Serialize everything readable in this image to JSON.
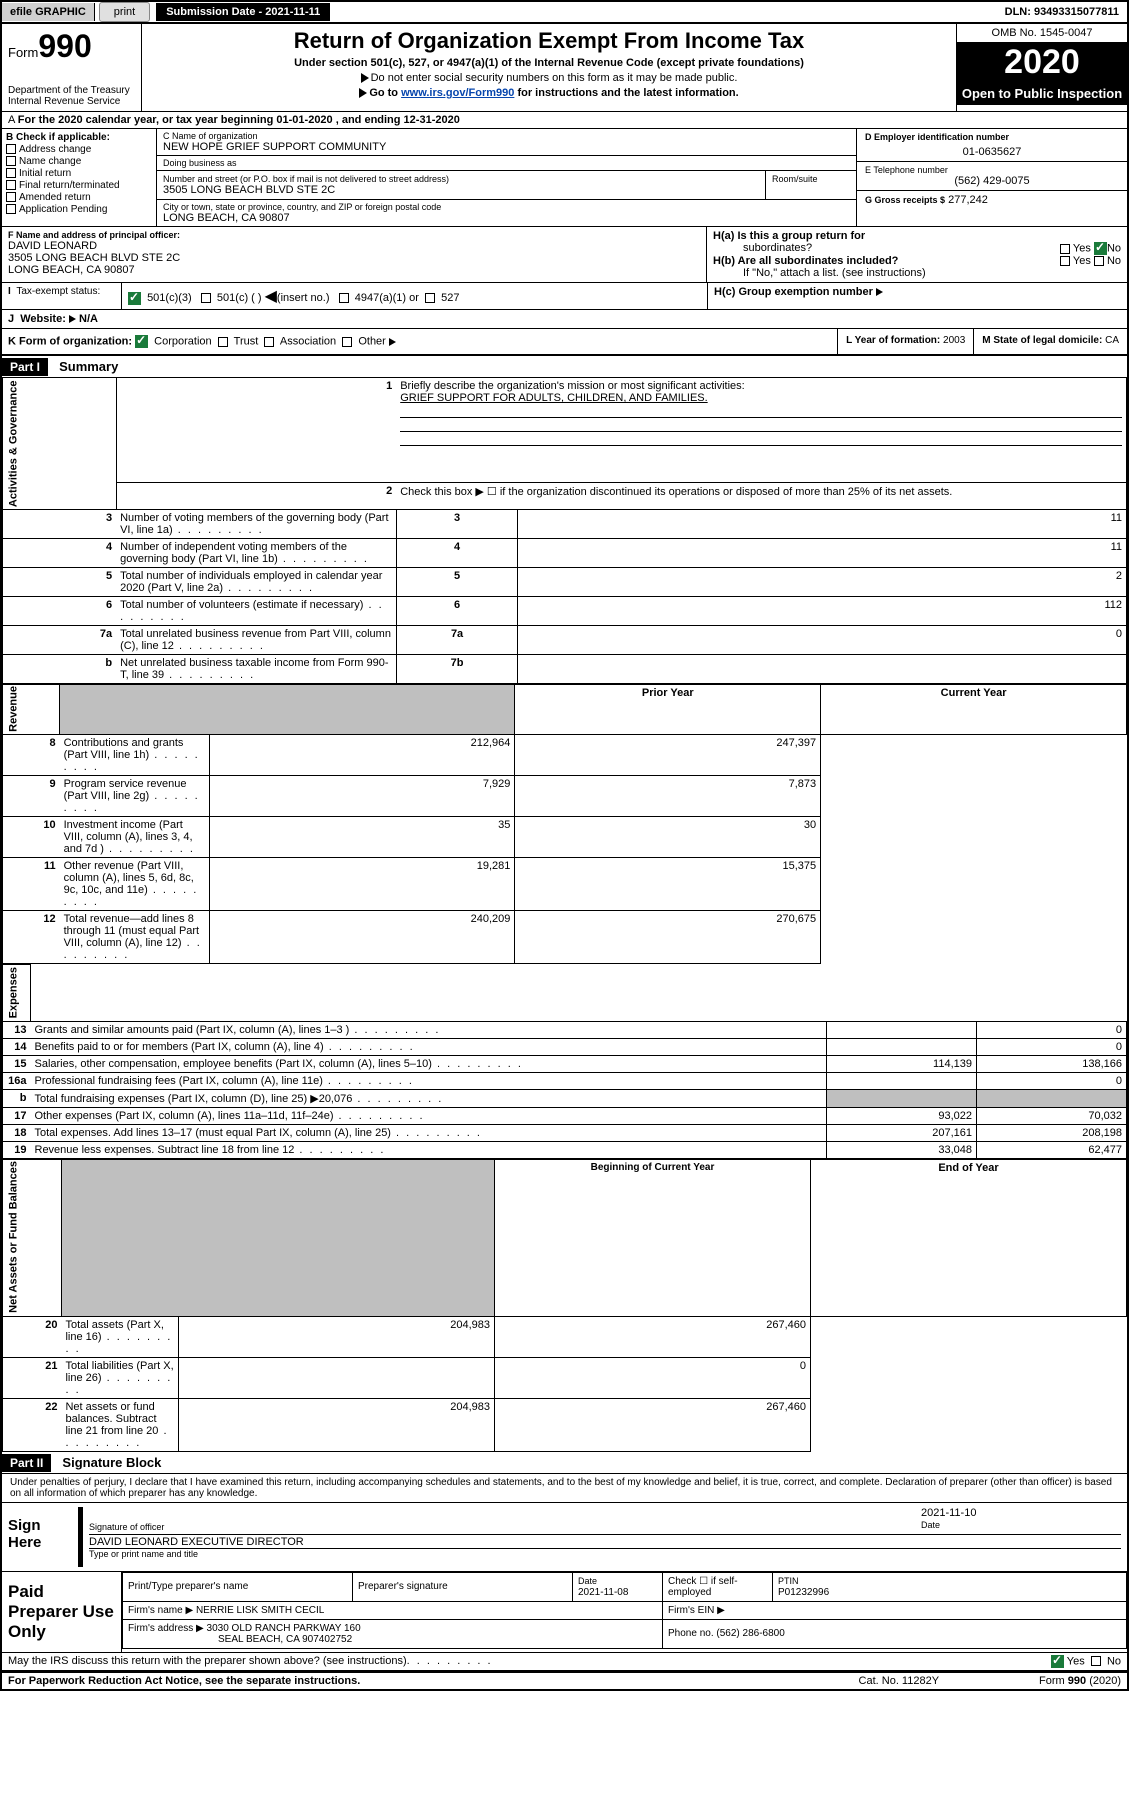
{
  "top": {
    "efile": "efile GRAPHIC",
    "print": "print",
    "submission_label": "Submission Date - 2021-11-11",
    "dln": "DLN: 93493315077811"
  },
  "header": {
    "form_word": "Form",
    "form_num": "990",
    "title": "Return of Organization Exempt From Income Tax",
    "subtitle": "Under section 501(c), 527, or 4947(a)(1) of the Internal Revenue Code (except private foundations)",
    "note1": "Do not enter social security numbers on this form as it may be made public.",
    "note2_pre": "Go to ",
    "note2_link": "www.irs.gov/Form990",
    "note2_post": " for instructions and the latest information.",
    "dept": "Department of the Treasury\nInternal Revenue Service",
    "omb": "OMB No. 1545-0047",
    "year": "2020",
    "open": "Open to Public Inspection"
  },
  "period": "For the 2020 calendar year, or tax year beginning 01-01-2020   , and ending 12-31-2020",
  "boxB": {
    "hdr": "B Check if applicable:",
    "items": [
      "Address change",
      "Name change",
      "Initial return",
      "Final return/terminated",
      "Amended return",
      "Application Pending"
    ]
  },
  "boxC": {
    "name_lbl": "C Name of organization",
    "name": "NEW HOPE GRIEF SUPPORT COMMUNITY",
    "dba_lbl": "Doing business as",
    "dba": "",
    "street_lbl": "Number and street (or P.O. box if mail is not delivered to street address)",
    "room_lbl": "Room/suite",
    "street": "3505 LONG BEACH BLVD STE 2C",
    "city_lbl": "City or town, state or province, country, and ZIP or foreign postal code",
    "city": "LONG BEACH, CA  90807"
  },
  "boxD": {
    "lbl": "D Employer identification number",
    "val": "01-0635627"
  },
  "boxE": {
    "lbl": "E Telephone number",
    "val": "(562) 429-0075"
  },
  "boxG": {
    "lbl": "G Gross receipts $",
    "val": "277,242"
  },
  "boxF": {
    "lbl": "F  Name and address of principal officer:",
    "name": "DAVID LEONARD",
    "addr1": "3505 LONG BEACH BLVD STE 2C",
    "addr2": "LONG BEACH, CA  90807"
  },
  "boxH": {
    "a_lbl": "H(a)  Is this a group return for",
    "a_sub": "subordinates?",
    "b_lbl": "H(b)  Are all subordinates included?",
    "b_note": "If \"No,\" attach a list. (see instructions)",
    "c_lbl": "H(c)  Group exemption number",
    "yes": "Yes",
    "no": "No"
  },
  "boxI": {
    "lbl": "Tax-exempt status:",
    "opts": [
      "501(c)(3)",
      "501(c) (  )",
      "(insert no.)",
      "4947(a)(1) or",
      "527"
    ]
  },
  "boxJ": {
    "lbl": "Website:",
    "val": "N/A"
  },
  "boxK": {
    "lbl": "K Form of organization:",
    "opts": [
      "Corporation",
      "Trust",
      "Association",
      "Other"
    ]
  },
  "boxL": {
    "lbl": "L Year of formation:",
    "val": "2003"
  },
  "boxM": {
    "lbl": "M State of legal domicile:",
    "val": "CA"
  },
  "part1": {
    "hdr": "Part I",
    "title": "Summary",
    "side_ag": "Activities & Governance",
    "side_rev": "Revenue",
    "side_exp": "Expenses",
    "side_na": "Net Assets or Fund Balances",
    "q1": "Briefly describe the organization's mission or most significant activities:",
    "q1_ans": "GRIEF SUPPORT FOR ADULTS, CHILDREN, AND FAMILIES.",
    "q2": "Check this box ▶ ☐  if the organization discontinued its operations or disposed of more than 25% of its net assets.",
    "rows_ag": [
      {
        "n": "3",
        "d": "Number of voting members of the governing body (Part VI, line 1a)",
        "k": "3",
        "v": "11"
      },
      {
        "n": "4",
        "d": "Number of independent voting members of the governing body (Part VI, line 1b)",
        "k": "4",
        "v": "11"
      },
      {
        "n": "5",
        "d": "Total number of individuals employed in calendar year 2020 (Part V, line 2a)",
        "k": "5",
        "v": "2"
      },
      {
        "n": "6",
        "d": "Total number of volunteers (estimate if necessary)",
        "k": "6",
        "v": "112"
      },
      {
        "n": "7a",
        "d": "Total unrelated business revenue from Part VIII, column (C), line 12",
        "k": "7a",
        "v": "0"
      },
      {
        "n": "b",
        "d": "Net unrelated business taxable income from Form 990-T, line 39",
        "k": "7b",
        "v": ""
      }
    ],
    "col_py": "Prior Year",
    "col_cy": "Current Year",
    "rows_rev": [
      {
        "n": "8",
        "d": "Contributions and grants (Part VIII, line 1h)",
        "py": "212,964",
        "cy": "247,397"
      },
      {
        "n": "9",
        "d": "Program service revenue (Part VIII, line 2g)",
        "py": "7,929",
        "cy": "7,873"
      },
      {
        "n": "10",
        "d": "Investment income (Part VIII, column (A), lines 3, 4, and 7d )",
        "py": "35",
        "cy": "30"
      },
      {
        "n": "11",
        "d": "Other revenue (Part VIII, column (A), lines 5, 6d, 8c, 9c, 10c, and 11e)",
        "py": "19,281",
        "cy": "15,375"
      },
      {
        "n": "12",
        "d": "Total revenue—add lines 8 through 11 (must equal Part VIII, column (A), line 12)",
        "py": "240,209",
        "cy": "270,675"
      }
    ],
    "rows_exp": [
      {
        "n": "13",
        "d": "Grants and similar amounts paid (Part IX, column (A), lines 1–3 )",
        "py": "",
        "cy": "0"
      },
      {
        "n": "14",
        "d": "Benefits paid to or for members (Part IX, column (A), line 4)",
        "py": "",
        "cy": "0"
      },
      {
        "n": "15",
        "d": "Salaries, other compensation, employee benefits (Part IX, column (A), lines 5–10)",
        "py": "114,139",
        "cy": "138,166"
      },
      {
        "n": "16a",
        "d": "Professional fundraising fees (Part IX, column (A), line 11e)",
        "py": "",
        "cy": "0"
      },
      {
        "n": "b",
        "d": "Total fundraising expenses (Part IX, column (D), line 25) ▶20,076",
        "py": "__shade__",
        "cy": "__shade__"
      },
      {
        "n": "17",
        "d": "Other expenses (Part IX, column (A), lines 11a–11d, 11f–24e)",
        "py": "93,022",
        "cy": "70,032"
      },
      {
        "n": "18",
        "d": "Total expenses. Add lines 13–17 (must equal Part IX, column (A), line 25)",
        "py": "207,161",
        "cy": "208,198"
      },
      {
        "n": "19",
        "d": "Revenue less expenses. Subtract line 18 from line 12",
        "py": "33,048",
        "cy": "62,477"
      }
    ],
    "col_bcy": "Beginning of Current Year",
    "col_eoy": "End of Year",
    "rows_na": [
      {
        "n": "20",
        "d": "Total assets (Part X, line 16)",
        "py": "204,983",
        "cy": "267,460"
      },
      {
        "n": "21",
        "d": "Total liabilities (Part X, line 26)",
        "py": "",
        "cy": "0"
      },
      {
        "n": "22",
        "d": "Net assets or fund balances. Subtract line 21 from line 20",
        "py": "204,983",
        "cy": "267,460"
      }
    ]
  },
  "part2": {
    "hdr": "Part II",
    "title": "Signature Block",
    "decl": "Under penalties of perjury, I declare that I have examined this return, including accompanying schedules and statements, and to the best of my knowledge and belief, it is true, correct, and complete. Declaration of preparer (other than officer) is based on all information of which preparer has any knowledge.",
    "sign_here": "Sign Here",
    "sig_officer_lbl": "Signature of officer",
    "sig_date": "2021-11-10",
    "sig_date_lbl": "Date",
    "officer_name": "DAVID LEONARD  EXECUTIVE DIRECTOR",
    "officer_name_lbl": "Type or print name and title",
    "paid_hdr": "Paid Preparer Use Only",
    "prep_name_lbl": "Print/Type preparer's name",
    "prep_sig_lbl": "Preparer's signature",
    "prep_date_lbl": "Date",
    "prep_date": "2021-11-08",
    "prep_self_lbl": "Check ☐ if self-employed",
    "ptin_lbl": "PTIN",
    "ptin": "P01232996",
    "firm_name_lbl": "Firm's name    ▶",
    "firm_name": "NERRIE LISK SMITH CECIL",
    "firm_ein_lbl": "Firm's EIN ▶",
    "firm_addr_lbl": "Firm's address ▶",
    "firm_addr1": "3030 OLD RANCH PARKWAY 160",
    "firm_addr2": "SEAL BEACH, CA  907402752",
    "firm_phone_lbl": "Phone no.",
    "firm_phone": "(562) 286-6800",
    "discuss": "May the IRS discuss this return with the preparer shown above? (see instructions)",
    "yes": "Yes",
    "no": "No"
  },
  "footer": {
    "left": "For Paperwork Reduction Act Notice, see the separate instructions.",
    "mid": "Cat. No. 11282Y",
    "right": "Form 990 (2020)"
  }
}
